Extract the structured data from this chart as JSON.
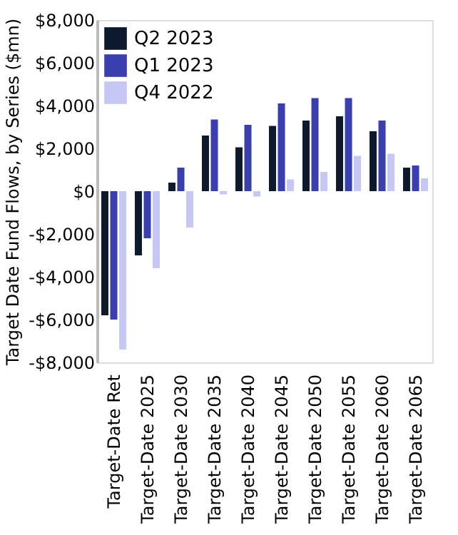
{
  "chart_data": {
    "type": "bar",
    "ylabel": "Target Date Fund Flows, by Series ($mn)",
    "categories": [
      "Target-Date Ret",
      "Target-Date 2025",
      "Target-Date 2030",
      "Target-Date 2035",
      "Target-Date 2040",
      "Target-Date 2045",
      "Target-Date 2050",
      "Target-Date 2055",
      "Target-Date 2060",
      "Target-Date 2065"
    ],
    "series": [
      {
        "name": "Q2 2023",
        "color": "#0d1a2e",
        "values": [
          -5800,
          -3000,
          400,
          2600,
          2050,
          3050,
          3300,
          3500,
          2800,
          1100
        ]
      },
      {
        "name": "Q1 2023",
        "color": "#3a3fb0",
        "values": [
          -6000,
          -2200,
          1100,
          3350,
          3100,
          4100,
          4350,
          4350,
          3300,
          1200
        ]
      },
      {
        "name": "Q4 2022",
        "color": "#c5c8f5",
        "values": [
          -7400,
          -3600,
          -1700,
          -150,
          -250,
          550,
          900,
          1650,
          1750,
          600
        ]
      }
    ],
    "ylim": [
      -8000,
      8000
    ],
    "yticks": [
      {
        "value": -8000,
        "label": "-$8,000"
      },
      {
        "value": -6000,
        "label": "-$6,000"
      },
      {
        "value": -4000,
        "label": "-$4,000"
      },
      {
        "value": -2000,
        "label": "-$2,000"
      },
      {
        "value": 0,
        "label": "$0"
      },
      {
        "value": 2000,
        "label": "$2,000"
      },
      {
        "value": 4000,
        "label": "$4,000"
      },
      {
        "value": 6000,
        "label": "$6,000"
      },
      {
        "value": 8000,
        "label": "$8,000"
      }
    ],
    "grid": false,
    "legend": "top left"
  }
}
